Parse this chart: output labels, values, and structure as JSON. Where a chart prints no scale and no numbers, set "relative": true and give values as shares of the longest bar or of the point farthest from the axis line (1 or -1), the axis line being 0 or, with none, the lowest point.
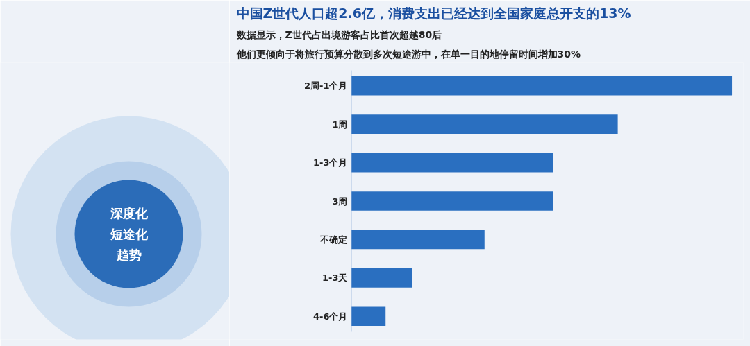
{
  "chart_data": {
    "type": "bar",
    "orientation": "horizontal",
    "relative": true,
    "title": "中国Z世代人口超2.6亿，消费支出已经达到全国家庭总开支的13%",
    "subtitle": "数据显示，Z世代占出境游客占比首次超越80后",
    "categories": [
      "2周-1个月",
      "1周",
      "1-3个月",
      "3周",
      "不确定",
      "1-3天",
      "4-6个月"
    ],
    "values": [
      1,
      0.7,
      0.53,
      0.53,
      0.35,
      0.16,
      0.09
    ],
    "color": "#2a6fc0",
    "grid": false,
    "annotations": [
      "他们更倾向于将旅行预算分散到多次短途游中，在单一目的地停留时间增加30%",
      "深度化",
      "短途化",
      "趋势"
    ]
  }
}
